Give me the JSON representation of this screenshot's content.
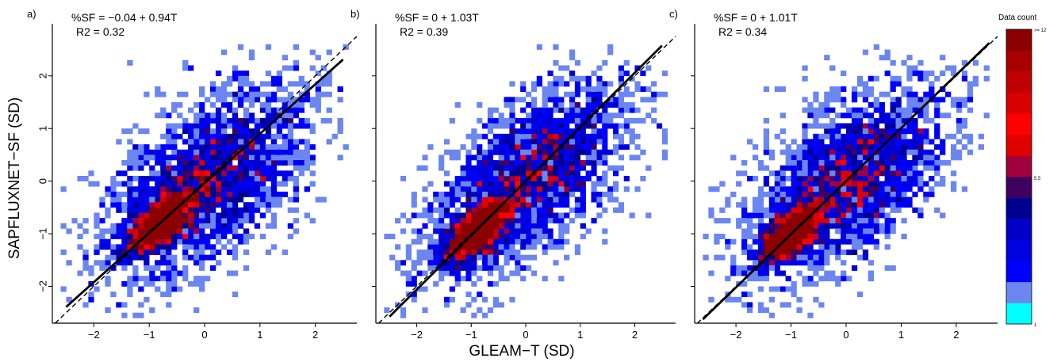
{
  "chart_data": [
    {
      "type": "heatmap",
      "panel_label": "a)",
      "equation": "%SF = −0.04 + 0.94T",
      "r2": "R2 = 0.32",
      "intercept": -0.04,
      "slope": 0.94,
      "xlim": [
        -2.75,
        2.75
      ],
      "ylim": [
        -2.7,
        2.9
      ],
      "x_ticks": [
        "−2",
        "−1",
        "0",
        "1",
        "2"
      ],
      "y_ticks": [
        "−2",
        "−1",
        "0",
        "1",
        "2"
      ],
      "fit_range": [
        -2.5,
        2.5
      ],
      "density_center": [
        -0.75,
        -0.75
      ],
      "correlation": 0.57,
      "seed": 11
    },
    {
      "type": "heatmap",
      "panel_label": "b)",
      "equation": "%SF = 0 + 1.03T",
      "r2": "R2 = 0.39",
      "intercept": 0,
      "slope": 1.03,
      "xlim": [
        -2.75,
        2.75
      ],
      "ylim": [
        -2.7,
        2.9
      ],
      "x_ticks": [
        "−2",
        "−1",
        "0",
        "1",
        "2"
      ],
      "y_ticks": [],
      "fit_range": [
        -2.5,
        2.5
      ],
      "density_center": [
        -0.9,
        -0.95
      ],
      "correlation": 0.62,
      "seed": 23
    },
    {
      "type": "heatmap",
      "panel_label": "c)",
      "equation": "%SF = 0 + 1.01T",
      "r2": "R2 = 0.34",
      "intercept": 0,
      "slope": 1.01,
      "xlim": [
        -2.75,
        2.75
      ],
      "ylim": [
        -2.7,
        2.9
      ],
      "x_ticks": [
        "−2",
        "−1",
        "0",
        "1",
        "2"
      ],
      "y_ticks": [],
      "fit_range": [
        -2.6,
        2.6
      ],
      "density_center": [
        -1.0,
        -1.0
      ],
      "correlation": 0.58,
      "seed": 37
    }
  ],
  "ylabel": "SAPFLUXNET−SF (SD)",
  "xlabel": "GLEAM−T (SD)",
  "legend": {
    "title": "Data count",
    "labels": [
      ">= 12",
      "5.5",
      "1"
    ],
    "colors": [
      "#00ffff",
      "#6b86f0",
      "#0000ff",
      "#0000e0",
      "#0000c8",
      "#000090",
      "#400060",
      "#a0003c",
      "#e00000",
      "#ff0000",
      "#d80000",
      "#c00000",
      "#a80000",
      "#8b0000"
    ]
  },
  "line_color": "#000000"
}
